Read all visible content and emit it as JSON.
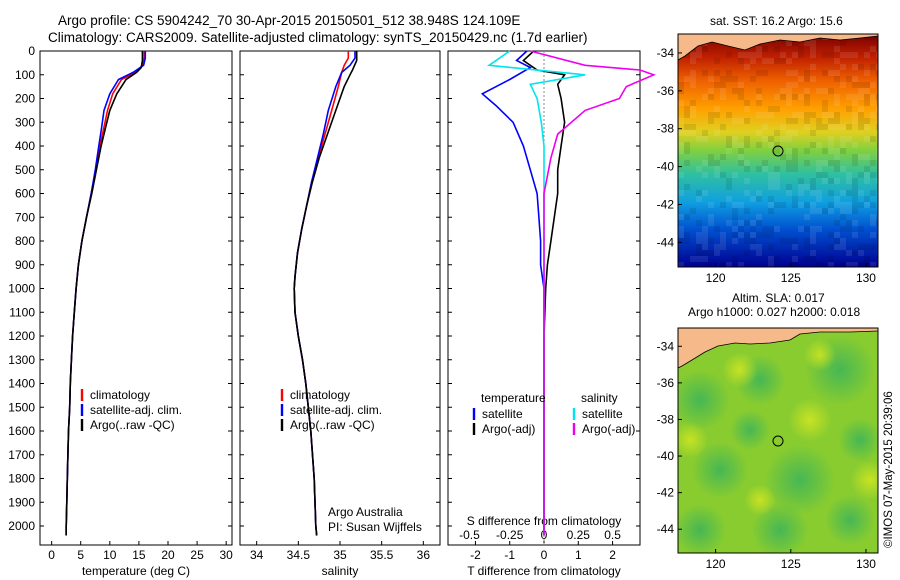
{
  "header": {
    "line1": "Argo profile: CS 5904242_70 30-Apr-2015 20150501_512 38.948S 124.109E",
    "line2": "Climatology: CARS2009. Satellite-adjusted climatology: synTS_20150429.nc (1.7d earlier)"
  },
  "colors": {
    "climatology": "#ff0000",
    "satellite": "#0000ff",
    "argo": "#000000",
    "sat_salinity": "#00e5ee",
    "argo_salinity": "#ee00ee"
  },
  "credits": {
    "line1": "Argo Australia",
    "line2": "PI: Susan Wijffels",
    "stamp": "©IMOS 07-May-2015 20:39:06"
  },
  "panel_titles": {
    "sst": "sat. SST: 16.2 Argo: 15.6",
    "sla1": "Altim. SLA: 0.017",
    "sla2": "Argo h1000: 0.027 h2000: 0.018"
  },
  "chart_data": [
    {
      "type": "line",
      "xlabel": "temperature (deg C)",
      "ylabel": "",
      "xlim": [
        -2,
        31
      ],
      "ylim": [
        2080,
        0
      ],
      "xticks": [
        0,
        5,
        10,
        15,
        20,
        25,
        30
      ],
      "xtick_labels": [
        "0",
        "5",
        "10",
        "15",
        "20",
        "25",
        "30"
      ],
      "yticks": [
        0,
        100,
        200,
        300,
        400,
        500,
        600,
        700,
        800,
        900,
        1000,
        1100,
        1200,
        1300,
        1400,
        1500,
        1600,
        1700,
        1800,
        1900,
        2000
      ],
      "legend": [
        "climatology",
        "satellite-adj. clim.",
        "Argo(..raw -QC)"
      ],
      "series": [
        {
          "name": "climatology",
          "values": [
            [
              15.9,
              0
            ],
            [
              15.9,
              30
            ],
            [
              15.6,
              60
            ],
            [
              14.5,
              90
            ],
            [
              12.0,
              120
            ],
            [
              10.5,
              180
            ],
            [
              9.6,
              250
            ],
            [
              9.0,
              320
            ],
            [
              8.3,
              400
            ],
            [
              7.6,
              500
            ],
            [
              6.8,
              600
            ],
            [
              6.0,
              700
            ],
            [
              5.2,
              800
            ],
            [
              4.6,
              900
            ],
            [
              4.2,
              1000
            ],
            [
              3.9,
              1100
            ],
            [
              3.6,
              1200
            ],
            [
              3.4,
              1300
            ],
            [
              3.2,
              1400
            ],
            [
              3.1,
              1500
            ],
            [
              2.9,
              1600
            ],
            [
              2.8,
              1700
            ],
            [
              2.7,
              1800
            ],
            [
              2.6,
              1900
            ],
            [
              2.5,
              2000
            ],
            [
              2.5,
              2040
            ]
          ]
        },
        {
          "name": "satellite-adj. clim.",
          "values": [
            [
              16.1,
              0
            ],
            [
              16.1,
              30
            ],
            [
              15.8,
              60
            ],
            [
              14.0,
              90
            ],
            [
              11.5,
              120
            ],
            [
              10.0,
              180
            ],
            [
              9.0,
              250
            ],
            [
              8.6,
              320
            ],
            [
              8.1,
              400
            ],
            [
              7.5,
              500
            ],
            [
              6.8,
              600
            ],
            [
              6.0,
              700
            ],
            [
              5.2,
              800
            ],
            [
              4.6,
              900
            ],
            [
              4.2,
              1000
            ],
            [
              3.9,
              1100
            ],
            [
              3.6,
              1200
            ],
            [
              3.4,
              1300
            ],
            [
              3.2,
              1400
            ],
            [
              3.1,
              1500
            ],
            [
              2.9,
              1600
            ],
            [
              2.8,
              1700
            ],
            [
              2.7,
              1800
            ],
            [
              2.6,
              1900
            ],
            [
              2.5,
              2000
            ],
            [
              2.5,
              2040
            ]
          ]
        },
        {
          "name": "Argo(..raw -QC)",
          "values": [
            [
              15.6,
              0
            ],
            [
              15.6,
              40
            ],
            [
              15.4,
              70
            ],
            [
              14.6,
              90
            ],
            [
              12.8,
              120
            ],
            [
              11.2,
              180
            ],
            [
              10.0,
              250
            ],
            [
              9.3,
              320
            ],
            [
              8.5,
              400
            ],
            [
              7.7,
              500
            ],
            [
              6.9,
              600
            ],
            [
              6.0,
              700
            ],
            [
              5.2,
              800
            ],
            [
              4.6,
              900
            ],
            [
              4.2,
              1000
            ],
            [
              3.9,
              1100
            ],
            [
              3.6,
              1200
            ],
            [
              3.4,
              1300
            ],
            [
              3.2,
              1400
            ],
            [
              3.1,
              1500
            ],
            [
              2.9,
              1600
            ],
            [
              2.8,
              1700
            ],
            [
              2.7,
              1800
            ],
            [
              2.6,
              1900
            ],
            [
              2.5,
              2000
            ],
            [
              2.5,
              2040
            ]
          ]
        }
      ]
    },
    {
      "type": "line",
      "xlabel": "salinity",
      "ylabel": "",
      "xlim": [
        33.8,
        36.2
      ],
      "ylim": [
        2080,
        0
      ],
      "xticks": [
        34,
        34.5,
        35,
        35.5,
        36
      ],
      "xtick_labels": [
        "34",
        "34.5",
        "35",
        "35.5",
        "36"
      ],
      "legend": [
        "climatology",
        "satellite-adj. clim.",
        "Argo(..raw -QC)"
      ],
      "series": [
        {
          "name": "climatology",
          "values": [
            [
              35.1,
              0
            ],
            [
              35.1,
              30
            ],
            [
              35.05,
              60
            ],
            [
              35.02,
              90
            ],
            [
              34.98,
              150
            ],
            [
              34.9,
              250
            ],
            [
              34.82,
              350
            ],
            [
              34.74,
              450
            ],
            [
              34.66,
              550
            ],
            [
              34.6,
              650
            ],
            [
              34.54,
              750
            ],
            [
              34.49,
              850
            ],
            [
              34.46,
              950
            ],
            [
              34.45,
              1000
            ],
            [
              34.46,
              1100
            ],
            [
              34.5,
              1200
            ],
            [
              34.55,
              1300
            ],
            [
              34.59,
              1400
            ],
            [
              34.62,
              1500
            ],
            [
              34.65,
              1600
            ],
            [
              34.67,
              1700
            ],
            [
              34.69,
              1800
            ],
            [
              34.7,
              1900
            ],
            [
              34.71,
              2000
            ],
            [
              34.72,
              2040
            ]
          ]
        },
        {
          "name": "satellite-adj. clim.",
          "values": [
            [
              35.18,
              0
            ],
            [
              35.18,
              30
            ],
            [
              35.12,
              60
            ],
            [
              35.02,
              90
            ],
            [
              34.95,
              150
            ],
            [
              34.86,
              250
            ],
            [
              34.8,
              350
            ],
            [
              34.73,
              450
            ],
            [
              34.66,
              550
            ],
            [
              34.6,
              650
            ],
            [
              34.54,
              750
            ],
            [
              34.49,
              850
            ],
            [
              34.46,
              950
            ],
            [
              34.45,
              1000
            ],
            [
              34.46,
              1100
            ],
            [
              34.5,
              1200
            ],
            [
              34.55,
              1300
            ],
            [
              34.59,
              1400
            ],
            [
              34.62,
              1500
            ],
            [
              34.65,
              1600
            ],
            [
              34.67,
              1700
            ],
            [
              34.69,
              1800
            ],
            [
              34.7,
              1900
            ],
            [
              34.71,
              2000
            ],
            [
              34.72,
              2040
            ]
          ]
        },
        {
          "name": "Argo(..raw -QC)",
          "values": [
            [
              35.2,
              0
            ],
            [
              35.2,
              40
            ],
            [
              35.15,
              80
            ],
            [
              35.12,
              100
            ],
            [
              35.05,
              150
            ],
            [
              34.95,
              250
            ],
            [
              34.85,
              350
            ],
            [
              34.75,
              450
            ],
            [
              34.67,
              550
            ],
            [
              34.6,
              650
            ],
            [
              34.54,
              750
            ],
            [
              34.49,
              850
            ],
            [
              34.46,
              950
            ],
            [
              34.45,
              1000
            ],
            [
              34.46,
              1100
            ],
            [
              34.5,
              1200
            ],
            [
              34.55,
              1300
            ],
            [
              34.59,
              1400
            ],
            [
              34.62,
              1500
            ],
            [
              34.65,
              1600
            ],
            [
              34.67,
              1700
            ],
            [
              34.69,
              1800
            ],
            [
              34.7,
              1900
            ],
            [
              34.71,
              2000
            ],
            [
              34.72,
              2040
            ]
          ]
        }
      ]
    },
    {
      "type": "line",
      "xlabel": "T difference from climatology",
      "top_label": "S difference from climatology",
      "xlim": [
        -2.8,
        2.8
      ],
      "ylim": [
        2080,
        0
      ],
      "xticks": [
        -2,
        -1,
        0,
        1,
        2
      ],
      "xtick_labels": [
        "-2",
        "-1",
        "0",
        "1",
        "2"
      ],
      "top_xtick_labels": [
        "-0.5",
        "-0.25",
        "0",
        "0.25",
        "0.5"
      ],
      "legend_groups": [
        "temperature",
        "salinity"
      ],
      "legend": [
        "satellite",
        "Argo(-adj)",
        "satellite",
        "Argo(-adj)"
      ],
      "series": [
        {
          "name": "satellite",
          "group": "temperature",
          "values": [
            [
              -0.5,
              0
            ],
            [
              -0.8,
              40
            ],
            [
              -0.4,
              70
            ],
            [
              -1.0,
              120
            ],
            [
              -1.8,
              180
            ],
            [
              -1.4,
              230
            ],
            [
              -0.9,
              300
            ],
            [
              -0.6,
              400
            ],
            [
              -0.4,
              500
            ],
            [
              -0.2,
              600
            ],
            [
              -0.15,
              700
            ],
            [
              -0.1,
              800
            ],
            [
              -0.1,
              900
            ],
            [
              0,
              1000
            ],
            [
              0,
              1200
            ],
            [
              0,
              1500
            ],
            [
              0,
              2040
            ]
          ]
        },
        {
          "name": "Argo(-adj)",
          "group": "temperature",
          "values": [
            [
              -0.3,
              0
            ],
            [
              -0.6,
              40
            ],
            [
              -0.2,
              80
            ],
            [
              0.6,
              100
            ],
            [
              0.4,
              140
            ],
            [
              0.5,
              200
            ],
            [
              0.6,
              300
            ],
            [
              0.5,
              400
            ],
            [
              0.4,
              500
            ],
            [
              0.4,
              600
            ],
            [
              0.3,
              700
            ],
            [
              0.2,
              800
            ],
            [
              0.1,
              900
            ],
            [
              0.05,
              1000
            ],
            [
              0,
              1200
            ],
            [
              0,
              1500
            ],
            [
              0,
              2040
            ]
          ]
        },
        {
          "name": "satellite",
          "group": "salinity",
          "values": [
            [
              -0.25,
              0
            ],
            [
              -0.4,
              60
            ],
            [
              0.3,
              100
            ],
            [
              -0.1,
              140
            ],
            [
              -0.05,
              200
            ],
            [
              -0.02,
              300
            ],
            [
              0,
              400
            ],
            [
              0,
              600
            ],
            [
              0,
              2040
            ]
          ]
        },
        {
          "name": "Argo(-adj)",
          "group": "salinity",
          "values": [
            [
              -0.1,
              0
            ],
            [
              0.3,
              60
            ],
            [
              0.7,
              80
            ],
            [
              0.8,
              100
            ],
            [
              0.6,
              150
            ],
            [
              0.55,
              200
            ],
            [
              0.3,
              250
            ],
            [
              0.1,
              350
            ],
            [
              0.05,
              450
            ],
            [
              0,
              600
            ],
            [
              0,
              2040
            ]
          ]
        }
      ]
    },
    {
      "type": "heatmap",
      "title": "sat. SST: 16.2 Argo: 15.6",
      "xlim": [
        117.5,
        130.8
      ],
      "ylim": [
        -45.3,
        -33
      ],
      "xtick_labels": [
        "120",
        "125",
        "130"
      ],
      "ytick_labels": [
        "-34",
        "-36",
        "-38",
        "-40",
        "-42",
        "-44"
      ],
      "profile_location": [
        124.109,
        -38.948
      ]
    },
    {
      "type": "heatmap",
      "title": "Altim. SLA: 0.017",
      "subtitle": "Argo h1000: 0.027 h2000: 0.018",
      "xlim": [
        117.5,
        130.8
      ],
      "ylim": [
        -45.3,
        -33
      ],
      "xtick_labels": [
        "120",
        "125",
        "130"
      ],
      "ytick_labels": [
        "-34",
        "-36",
        "-38",
        "-40",
        "-42",
        "-44"
      ],
      "profile_location": [
        124.109,
        -38.948
      ]
    }
  ]
}
